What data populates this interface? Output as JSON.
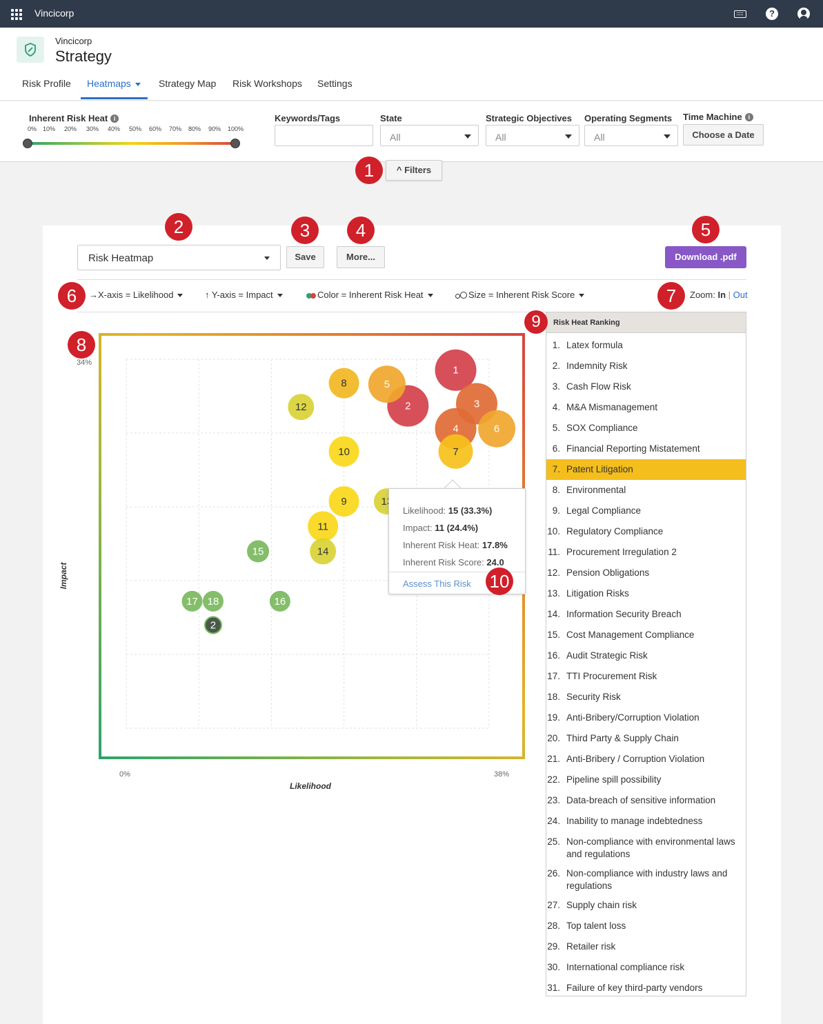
{
  "topbar": {
    "brand": "Vincicorp",
    "icons": [
      "apps-icon",
      "keyboard-icon",
      "help-icon",
      "user-icon"
    ]
  },
  "header": {
    "org": "Vincicorp",
    "title": "Strategy",
    "logo_icon": "shield-icon"
  },
  "tabs": [
    "Risk Profile",
    "Heatmaps",
    "Strategy Map",
    "Risk Workshops",
    "Settings"
  ],
  "filters": {
    "heat_label": "Inherent Risk Heat",
    "heat_ticks": [
      "0%",
      "10%",
      "20%",
      "30%",
      "40%",
      "50%",
      "60%",
      "70%",
      "80%",
      "90%",
      "100%"
    ],
    "heat_range": [
      0,
      100
    ],
    "keywords_label": "Keywords/Tags",
    "keywords_value": "",
    "state_label": "State",
    "state_value": "All",
    "objectives_label": "Strategic Objectives",
    "objectives_value": "All",
    "segments_label": "Operating Segments",
    "segments_value": "All",
    "time_label": "Time Machine",
    "time_button": "Choose a Date",
    "toggle_label": "Filters"
  },
  "badges": [
    "1",
    "2",
    "3",
    "4",
    "5",
    "6",
    "7",
    "8",
    "9",
    "10"
  ],
  "toolbar": {
    "heatmap_select": "Risk Heatmap",
    "save": "Save",
    "more": "More...",
    "download": "Download .pdf",
    "x_axis": "X-axis = Likelihood",
    "y_axis": "Y-axis = Impact",
    "color": "Color = Inherent Risk Heat",
    "size": "Size = Inherent Risk Score",
    "zoom_label": "Zoom:",
    "zoom_in": "In",
    "zoom_sep": "|",
    "zoom_out": "Out"
  },
  "chart_data": {
    "type": "scatter",
    "xlabel": "Likelihood",
    "ylabel": "Impact",
    "x_ticks": [
      "0%",
      "38%"
    ],
    "y_ticks": [
      "34%"
    ],
    "xlim": [
      0,
      38
    ],
    "ylim": [
      0,
      34
    ],
    "points": [
      {
        "label": "1",
        "x": 34.5,
        "y": 33.0,
        "size": 30,
        "color": "#d4404a"
      },
      {
        "label": "2",
        "x": 29.5,
        "y": 29.7,
        "size": 30,
        "color": "#d4404a"
      },
      {
        "label": "3",
        "x": 36.7,
        "y": 29.9,
        "size": 30,
        "color": "#e06b35"
      },
      {
        "label": "4",
        "x": 34.5,
        "y": 27.6,
        "size": 30,
        "color": "#e06b35"
      },
      {
        "label": "5",
        "x": 27.3,
        "y": 31.7,
        "size": 27,
        "color": "#f0a62c"
      },
      {
        "label": "6",
        "x": 38.8,
        "y": 27.6,
        "size": 27,
        "color": "#f0a62c"
      },
      {
        "label": "7",
        "x": 34.5,
        "y": 25.5,
        "size": 25,
        "color": "#f6c11b"
      },
      {
        "label": "8",
        "x": 22.8,
        "y": 31.8,
        "size": 22,
        "color": "#f2b722"
      },
      {
        "label": "9",
        "x": 22.8,
        "y": 20.9,
        "size": 22,
        "color": "#fad81a"
      },
      {
        "label": "10",
        "x": 22.8,
        "y": 25.5,
        "size": 22,
        "color": "#fad81a"
      },
      {
        "label": "11",
        "x": 20.6,
        "y": 18.6,
        "size": 22,
        "color": "#fad81a"
      },
      {
        "label": "12",
        "x": 18.3,
        "y": 29.6,
        "size": 19,
        "color": "#d9d236"
      },
      {
        "label": "13",
        "x": 27.3,
        "y": 20.9,
        "size": 19,
        "color": "#d9d236"
      },
      {
        "label": "14",
        "x": 20.6,
        "y": 16.3,
        "size": 19,
        "color": "#d9d236"
      },
      {
        "label": "15",
        "x": 13.8,
        "y": 16.3,
        "size": 16,
        "color": "#7ab95d"
      },
      {
        "label": "16",
        "x": 16.1,
        "y": 11.7,
        "size": 15,
        "color": "#7ab95d"
      },
      {
        "label": "17",
        "x": 6.9,
        "y": 11.7,
        "size": 15,
        "color": "#7ab95d"
      },
      {
        "label": "18",
        "x": 9.1,
        "y": 11.7,
        "size": 15,
        "color": "#7ab95d"
      },
      {
        "label": "2",
        "x": 9.1,
        "y": 9.5,
        "size": 12,
        "color": "#3a4a3a"
      }
    ]
  },
  "tooltip": {
    "likelihood_label": "Likelihood:",
    "likelihood_value": "15 (33.3%)",
    "impact_label": "Impact:",
    "impact_value": "11 (24.4%)",
    "heat_label": "Inherent Risk Heat:",
    "heat_value": "17.8%",
    "score_label": "Inherent Risk Score:",
    "score_value": "24.0",
    "assess_link": "Assess This Risk"
  },
  "ranking": {
    "title": "Risk Heat Ranking",
    "highlight_index": 6,
    "items": [
      {
        "num": "1.",
        "text": "Latex formula"
      },
      {
        "num": "2.",
        "text": "Indemnity Risk"
      },
      {
        "num": "3.",
        "text": "Cash Flow Risk"
      },
      {
        "num": "4.",
        "text": "M&A Mismanagement"
      },
      {
        "num": "5.",
        "text": "SOX Compliance"
      },
      {
        "num": "6.",
        "text": "Financial Reporting Mistatement"
      },
      {
        "num": "7.",
        "text": "Patent Litigation"
      },
      {
        "num": "8.",
        "text": "Environmental"
      },
      {
        "num": "9.",
        "text": "Legal Compliance"
      },
      {
        "num": "10.",
        "text": "Regulatory Compliance"
      },
      {
        "num": "11.",
        "text": "Procurement Irregulation 2"
      },
      {
        "num": "12.",
        "text": "Pension Obligations"
      },
      {
        "num": "13.",
        "text": "Litigation Risks"
      },
      {
        "num": "14.",
        "text": "Information Security Breach"
      },
      {
        "num": "15.",
        "text": "Cost Management Compliance"
      },
      {
        "num": "16.",
        "text": "Audit Strategic Risk"
      },
      {
        "num": "17.",
        "text": "TTI Procurement Risk"
      },
      {
        "num": "18.",
        "text": "Security Risk"
      },
      {
        "num": "19.",
        "text": "Anti-Bribery/Corruption Violation"
      },
      {
        "num": "20.",
        "text": "Third Party & Supply Chain"
      },
      {
        "num": "21.",
        "text": "Anti-Bribery / Corruption Violation"
      },
      {
        "num": "22.",
        "text": "Pipeline spill possibility"
      },
      {
        "num": "23.",
        "text": "Data-breach of sensitive information"
      },
      {
        "num": "24.",
        "text": "Inability to manage indebtedness"
      },
      {
        "num": "25.",
        "text": "Non-compliance with environmental laws and regulations"
      },
      {
        "num": "26.",
        "text": "Non-compliance with industry laws and regulations"
      },
      {
        "num": "27.",
        "text": "Supply chain risk"
      },
      {
        "num": "28.",
        "text": "Top talent loss"
      },
      {
        "num": "29.",
        "text": "Retailer risk"
      },
      {
        "num": "30.",
        "text": "International compliance risk"
      },
      {
        "num": "31.",
        "text": "Failure of key third-party vendors"
      }
    ]
  }
}
